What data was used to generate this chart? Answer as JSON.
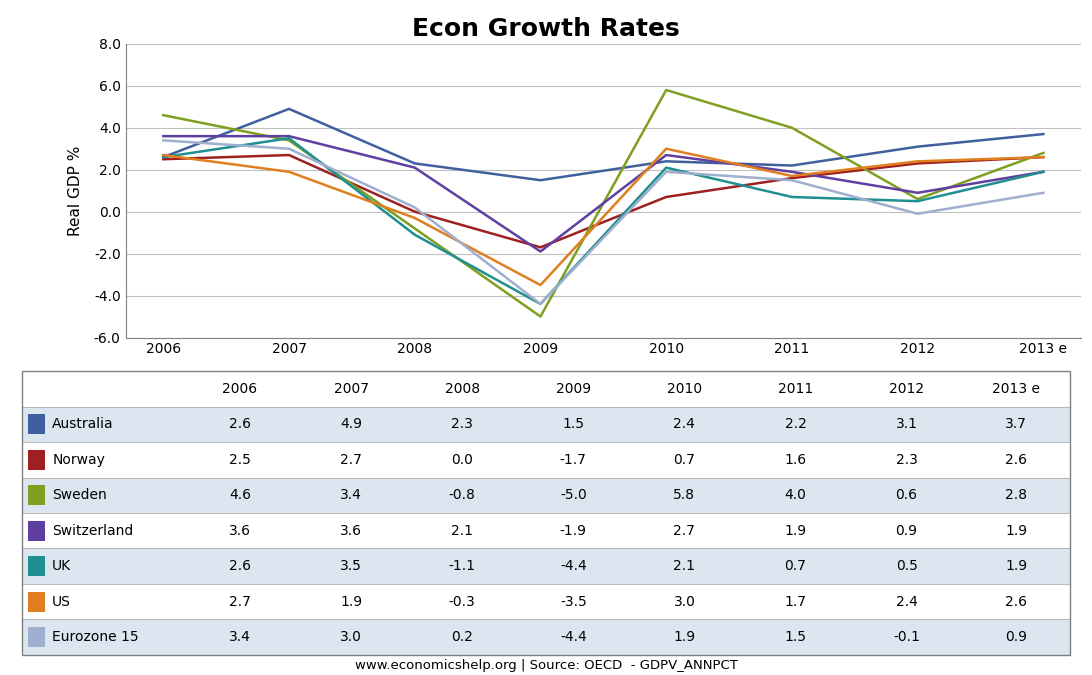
{
  "title": "Econ Growth Rates",
  "ylabel": "Real GDP %",
  "years": [
    "2006",
    "2007",
    "2008",
    "2009",
    "2010",
    "2011",
    "2012",
    "2013 e"
  ],
  "series": [
    {
      "label": "Australia",
      "color": "#3f5f9f",
      "values": [
        2.6,
        4.9,
        2.3,
        1.5,
        2.4,
        2.2,
        3.1,
        3.7
      ]
    },
    {
      "label": "Norway",
      "color": "#9f2020",
      "values": [
        2.5,
        2.7,
        0.0,
        -1.7,
        0.7,
        1.6,
        2.3,
        2.6
      ]
    },
    {
      "label": "Sweden",
      "color": "#7f9f20",
      "values": [
        4.6,
        3.4,
        -0.8,
        -5.0,
        5.8,
        4.0,
        0.6,
        2.8
      ]
    },
    {
      "label": "Switzerland",
      "color": "#5f3f9f",
      "values": [
        3.6,
        3.6,
        2.1,
        -1.9,
        2.7,
        1.9,
        0.9,
        1.9
      ]
    },
    {
      "label": "UK",
      "color": "#1f8f8f",
      "values": [
        2.6,
        3.5,
        -1.1,
        -4.4,
        2.1,
        0.7,
        0.5,
        1.9
      ]
    },
    {
      "label": "US",
      "color": "#df7f1f",
      "values": [
        2.7,
        1.9,
        -0.3,
        -3.5,
        3.0,
        1.7,
        2.4,
        2.6
      ]
    },
    {
      "label": "Eurozone 15",
      "color": "#9fafcf",
      "values": [
        3.4,
        3.0,
        0.2,
        -4.4,
        1.9,
        1.5,
        -0.1,
        0.9
      ]
    }
  ],
  "ylim": [
    -6.0,
    8.0
  ],
  "yticks": [
    -6.0,
    -4.0,
    -2.0,
    0.0,
    2.0,
    4.0,
    6.0,
    8.0
  ],
  "source_text": "www.economicshelp.org | Source: OECD  - GDPV_ANNPCT",
  "col_widths": [
    0.155,
    0.106,
    0.106,
    0.106,
    0.106,
    0.106,
    0.106,
    0.106,
    0.103
  ],
  "row_colors": [
    "#dce6f1",
    "#ffffff",
    "#dce6f1",
    "#ffffff",
    "#dce6f1",
    "#ffffff",
    "#dce6f1"
  ],
  "header_color": "#ffffff",
  "background_color": "#ffffff",
  "grid_color": "#c0c0c0"
}
